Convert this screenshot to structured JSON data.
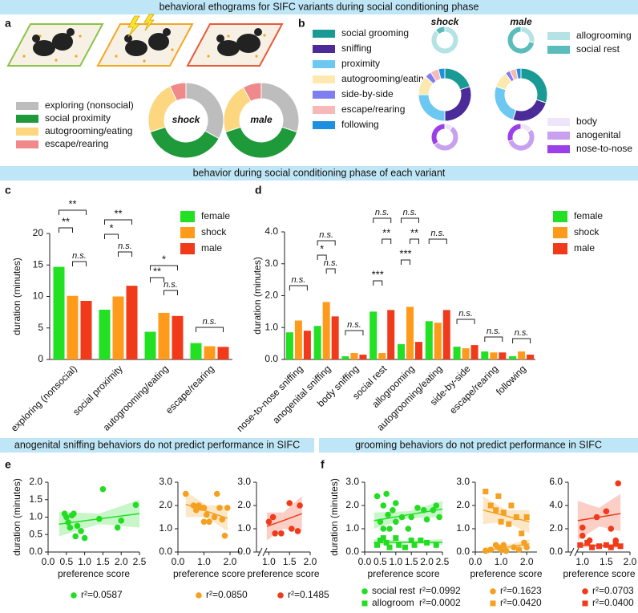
{
  "banners": [
    "behavioral ethograms for SIFC variants during social conditioning phase",
    "behavior during social conditioning phase of each variant",
    "anogenital sniffing behaviors do not predict performance in  SIFC",
    "grooming behaviors do not predict performance in SIFC"
  ],
  "panel_letters": [
    "a",
    "b",
    "c",
    "d",
    "e",
    "f"
  ],
  "chart_data": [
    {
      "type": "pie",
      "categories": [
        "exploring (nonsocial)",
        "social proximity",
        "autogrooming/eating",
        "escape/rearing"
      ],
      "colors": [
        "#bdbdbd",
        "#1e9a3a",
        "#fcd77f",
        "#f08a8a"
      ],
      "series": [
        {
          "name": "shock",
          "values": [
            33,
            37,
            23,
            7
          ]
        },
        {
          "name": "male",
          "values": [
            30,
            40,
            22,
            8
          ]
        }
      ]
    },
    {
      "type": "pie",
      "groups": [
        "shock",
        "male"
      ],
      "rings": [
        {
          "categories": [
            "allogrooming",
            "social rest"
          ],
          "colors": [
            "#b5e3e3",
            "#5bbcbc"
          ],
          "values": [
            [
              88,
              12
            ],
            [
              28,
              72
            ]
          ]
        },
        {
          "categories": [
            "social grooming",
            "sniffing",
            "proximity",
            "autogrooming/eating",
            "side-by-side",
            "escape/rearing",
            "following"
          ],
          "colors": [
            "#1a9a94",
            "#4b2a9a",
            "#6cc8f0",
            "#fde9b0",
            "#7e7ef0",
            "#f7b8b8",
            "#1f8fe0"
          ],
          "values": [
            [
              20,
              30,
              25,
              12,
              4,
              5,
              4
            ],
            [
              30,
              25,
              25,
              10,
              3,
              4,
              3
            ]
          ]
        },
        {
          "categories": [
            "body",
            "anogenital",
            "nose-to-nose"
          ],
          "colors": [
            "#efe5fb",
            "#c9a0f0",
            "#9a40e8"
          ],
          "values": [
            [
              10,
              55,
              35
            ],
            [
              15,
              55,
              30
            ]
          ]
        }
      ]
    },
    {
      "type": "bar",
      "ylabel": "duration (minutes)",
      "categories": [
        "exploring (nonsocial)",
        "social proximity",
        "autogrooming/eating",
        "escape/rearing"
      ],
      "series": [
        {
          "name": "female",
          "color": "#22e022",
          "values": [
            14.7,
            7.9,
            4.4,
            2.6
          ]
        },
        {
          "name": "shock",
          "color": "#ff9a1a",
          "values": [
            10.1,
            10.0,
            7.4,
            2.1
          ]
        },
        {
          "name": "male",
          "color": "#f03a1a",
          "values": [
            9.3,
            11.7,
            6.9,
            2.0
          ]
        }
      ],
      "ylim": [
        0,
        20
      ],
      "yticks": [
        0,
        5,
        10,
        15,
        20
      ],
      "annotations": [
        "**",
        "**",
        "n.s.",
        "**",
        "*",
        "n.s.",
        "*",
        "**",
        "n.s.",
        "n.s."
      ]
    },
    {
      "type": "bar",
      "ylabel": "duration (minutes)",
      "categories": [
        "nose-to-nose sniffing",
        "anogenital sniffing",
        "body sniffing",
        "social rest",
        "allogrooming",
        "autogrooming/eating",
        "side-by-side",
        "escape/rearing",
        "following"
      ],
      "series": [
        {
          "name": "female",
          "color": "#22e022",
          "values": [
            0.85,
            1.05,
            0.1,
            1.5,
            0.48,
            1.2,
            0.4,
            0.25,
            0.1
          ]
        },
        {
          "name": "shock",
          "color": "#ff9a1a",
          "values": [
            1.22,
            1.8,
            0.2,
            0.2,
            1.65,
            1.15,
            0.35,
            0.22,
            0.25
          ]
        },
        {
          "name": "male",
          "color": "#f03a1a",
          "values": [
            0.9,
            1.35,
            0.15,
            1.55,
            0.55,
            1.55,
            0.45,
            0.22,
            0.15
          ]
        }
      ],
      "ylim": [
        0,
        4
      ],
      "yticks": [
        {
          "value": 0,
          "label": "0.0"
        },
        {
          "value": 1,
          "label": "1.0"
        },
        {
          "value": 2,
          "label": "2.0"
        },
        {
          "value": 3,
          "label": "3.0"
        },
        {
          "value": 4,
          "label": "4.0"
        }
      ],
      "annotations": [
        "n.s.",
        "n.s.",
        "*",
        "n.s.",
        "n.s.",
        "n.s.",
        "**",
        "***",
        "n.s.",
        "**",
        "***",
        "n.s.",
        "n.s.",
        "n.s.",
        "n.s."
      ]
    },
    {
      "type": "scatter",
      "ylabel": "duration (minutes)",
      "xlabel": "preference score",
      "xlim": [
        0,
        2.5
      ],
      "ylim": [
        0,
        2
      ],
      "xticks": [
        {
          "value": 0,
          "label": "0.0"
        },
        {
          "value": 0.5,
          "label": "0.5"
        },
        {
          "value": 1,
          "label": "1.0"
        },
        {
          "value": 1.5,
          "label": "1.5"
        },
        {
          "value": 2,
          "label": "2.0"
        },
        {
          "value": 2.5,
          "label": "2.5"
        }
      ],
      "yticks": [
        {
          "value": 0,
          "label": "0.0"
        },
        {
          "value": 0.5,
          "label": "0.5"
        },
        {
          "value": 1,
          "label": "1.0"
        },
        {
          "value": 1.5,
          "label": "1.5"
        },
        {
          "value": 2,
          "label": "2.0"
        }
      ],
      "series": [
        {
          "marker": "circle",
          "color": "#22dd22",
          "r2_label": "r²=0.0587",
          "x": [
            0.45,
            0.5,
            0.55,
            0.6,
            0.65,
            0.7,
            0.75,
            0.8,
            0.9,
            1.0,
            1.4,
            1.5,
            1.9,
            2.0,
            2.4
          ],
          "values": [
            1.1,
            1.0,
            0.85,
            0.7,
            1.05,
            1.1,
            0.45,
            0.75,
            0.6,
            0.4,
            0.95,
            1.8,
            0.7,
            0.9,
            1.35
          ],
          "trend": {
            "x": [
              0.3,
              1.4,
              2.5
            ],
            "y": [
              0.8,
              0.95,
              1.1
            ],
            "lower": [
              0.45,
              0.8,
              0.7
            ],
            "upper": [
              1.15,
              1.1,
              1.5
            ]
          }
        }
      ]
    },
    {
      "type": "scatter",
      "xlabel": "preference score",
      "xlim": [
        0,
        2.4
      ],
      "ylim": [
        0,
        3
      ],
      "xticks": [
        {
          "value": 0,
          "label": "0.0"
        },
        {
          "value": 1,
          "label": "1.0"
        },
        {
          "value": 2,
          "label": "2.0"
        }
      ],
      "yticks": [
        {
          "value": 0,
          "label": "0.0"
        },
        {
          "value": 1,
          "label": "1.0"
        },
        {
          "value": 2,
          "label": "2.0"
        },
        {
          "value": 3,
          "label": "3.0"
        }
      ],
      "series": [
        {
          "marker": "circle",
          "color": "#f5a020",
          "r2_label": "r²=0.0850",
          "x": [
            0.3,
            0.6,
            0.7,
            0.8,
            0.9,
            1.0,
            1.0,
            1.1,
            1.2,
            1.4,
            1.5,
            1.6,
            1.7,
            1.8,
            1.9
          ],
          "values": [
            2.5,
            2.0,
            1.8,
            2.0,
            1.9,
            1.9,
            1.3,
            1.6,
            1.3,
            1.5,
            2.5,
            1.9,
            1.4,
            0.7,
            1.9
          ],
          "trend": {
            "x": [
              0.3,
              1.1,
              1.9
            ],
            "y": [
              2.05,
              1.75,
              1.45
            ],
            "lower": [
              1.5,
              1.5,
              0.9
            ],
            "upper": [
              2.6,
              2.0,
              2.0
            ]
          }
        }
      ]
    },
    {
      "type": "scatter",
      "xlabel": "preference score",
      "x_axis_break": true,
      "xlim": [
        0.7,
        2.0
      ],
      "ylim": [
        0,
        3
      ],
      "xticks": [
        {
          "value": 1,
          "label": "1.0"
        },
        {
          "value": 1.5,
          "label": "1.5"
        },
        {
          "value": 2,
          "label": "2.0"
        }
      ],
      "yticks": [
        {
          "value": 0,
          "label": "0.0"
        },
        {
          "value": 1,
          "label": "1.0"
        },
        {
          "value": 2,
          "label": "2.0"
        },
        {
          "value": 3,
          "label": "3.0"
        }
      ],
      "series": [
        {
          "marker": "circle",
          "color": "#f03a1a",
          "r2_label": "r²=0.1485",
          "x": [
            1.0,
            1.1,
            1.15,
            1.3,
            1.5,
            1.55,
            1.7,
            1.75
          ],
          "values": [
            1.3,
            1.5,
            0.8,
            0.8,
            2.1,
            1.0,
            0.9,
            2.0
          ],
          "trend": {
            "x": [
              0.95,
              1.35,
              1.8
            ],
            "y": [
              1.1,
              1.35,
              1.65
            ],
            "lower": [
              0.5,
              1.0,
              0.9
            ],
            "upper": [
              1.7,
              1.7,
              2.4
            ]
          }
        }
      ]
    },
    {
      "type": "scatter",
      "ylabel": "duration (minutes)",
      "xlabel": "preference score",
      "xlim": [
        0,
        2.5
      ],
      "ylim": [
        0,
        3
      ],
      "xticks": [
        {
          "value": 0,
          "label": "0.0"
        },
        {
          "value": 0.5,
          "label": "0.5"
        },
        {
          "value": 1,
          "label": "1.0"
        },
        {
          "value": 1.5,
          "label": "1.5"
        },
        {
          "value": 2,
          "label": "2.0"
        },
        {
          "value": 2.5,
          "label": "2.5"
        }
      ],
      "yticks": [
        {
          "value": 0,
          "label": "0.0"
        },
        {
          "value": 1,
          "label": "1.0"
        },
        {
          "value": 2,
          "label": "2.0"
        },
        {
          "value": 3,
          "label": "3.0"
        }
      ],
      "series": [
        {
          "name": "social rest",
          "marker": "circle",
          "color": "#22dd22",
          "r2_label": "r²=0.0992",
          "x": [
            0.4,
            0.5,
            0.6,
            0.6,
            0.7,
            0.75,
            0.8,
            0.9,
            1.0,
            1.0,
            1.2,
            1.4,
            1.5,
            1.7,
            1.9,
            2.0,
            2.2,
            2.3,
            2.4
          ],
          "values": [
            2.4,
            1.3,
            2.0,
            1.0,
            2.5,
            1.6,
            1.0,
            1.8,
            2.1,
            1.3,
            1.5,
            1.0,
            1.5,
            1.9,
            1.8,
            1.4,
            1.8,
            2.0,
            1.5
          ],
          "trend": {
            "x": [
              0.3,
              1.4,
              2.5
            ],
            "y": [
              1.35,
              1.6,
              1.85
            ],
            "lower": [
              1.0,
              1.45,
              1.5
            ],
            "upper": [
              1.7,
              1.75,
              2.2
            ]
          }
        },
        {
          "name": "allogroom",
          "marker": "square",
          "color": "#22dd22",
          "r2_label": "r²=0.0002",
          "x": [
            0.4,
            0.5,
            0.6,
            0.7,
            0.8,
            1.0,
            1.1,
            1.3,
            1.5,
            1.6,
            1.8,
            2.0,
            2.3
          ],
          "values": [
            0.3,
            0.5,
            0.6,
            0.4,
            0.2,
            0.6,
            0.3,
            0.2,
            0.5,
            0.3,
            0.5,
            0.4,
            0.3
          ],
          "trend": {
            "x": [
              0.3,
              1.4,
              2.5
            ],
            "y": [
              0.42,
              0.42,
              0.42
            ],
            "lower": [
              0.3,
              0.38,
              0.3
            ],
            "upper": [
              0.55,
              0.48,
              0.55
            ]
          }
        }
      ]
    },
    {
      "type": "scatter",
      "xlabel": "preference score",
      "xlim": [
        0,
        2.4
      ],
      "ylim": [
        0,
        3
      ],
      "xticks": [
        {
          "value": 0,
          "label": "0.0"
        },
        {
          "value": 1,
          "label": "1.0"
        },
        {
          "value": 2,
          "label": "2.0"
        }
      ],
      "yticks": [
        {
          "value": 0,
          "label": "0.0"
        },
        {
          "value": 1,
          "label": "1.0"
        },
        {
          "value": 2,
          "label": "2.0"
        },
        {
          "value": 3,
          "label": "3.0"
        }
      ],
      "series": [
        {
          "marker": "circle",
          "color": "#f5a020",
          "r2_label": "r²=0.1623",
          "x": [
            0.4,
            0.6,
            0.8,
            0.9,
            1.0,
            1.1,
            1.2,
            1.5,
            1.7,
            1.9,
            2.0
          ],
          "values": [
            0.05,
            0.1,
            0.3,
            0.2,
            0.1,
            0.3,
            0.05,
            0.2,
            0.1,
            0.4,
            0.2
          ],
          "trend": {
            "x": [
              0.3,
              1.2,
              2.1
            ],
            "y": [
              0.05,
              0.2,
              0.35
            ],
            "lower": [
              0,
              0.1,
              0.15
            ],
            "upper": [
              0.2,
              0.3,
              0.55
            ]
          }
        },
        {
          "marker": "square",
          "color": "#f5a020",
          "r2_label": "r²=0.0420",
          "x": [
            0.4,
            0.6,
            0.8,
            0.9,
            1.0,
            1.1,
            1.3,
            1.4,
            1.6,
            1.8,
            2.0
          ],
          "values": [
            2.6,
            2.0,
            1.8,
            2.4,
            1.3,
            1.7,
            1.2,
            2.0,
            1.5,
            0.8,
            1.5
          ],
          "trend": {
            "x": [
              0.3,
              1.2,
              2.1
            ],
            "y": [
              1.8,
              1.55,
              1.3
            ],
            "lower": [
              1.2,
              1.3,
              0.8
            ],
            "upper": [
              2.4,
              1.8,
              1.8
            ]
          }
        }
      ]
    },
    {
      "type": "scatter",
      "xlabel": "preference score",
      "x_axis_break": true,
      "xlim": [
        0.7,
        2.0
      ],
      "ylim": [
        0,
        6
      ],
      "xticks": [
        {
          "value": 1,
          "label": "1.0"
        },
        {
          "value": 1.5,
          "label": "1.5"
        },
        {
          "value": 2,
          "label": "2.0"
        }
      ],
      "yticks": [
        {
          "value": 0,
          "label": "0.0"
        },
        {
          "value": 2,
          "label": "2.0"
        },
        {
          "value": 4,
          "label": "4.0"
        },
        {
          "value": 6,
          "label": "6.0"
        }
      ],
      "series": [
        {
          "marker": "circle",
          "color": "#f03a1a",
          "r2_label": "r²=0.0703",
          "x": [
            1.0,
            1.0,
            1.15,
            1.3,
            1.5,
            1.6,
            1.7,
            1.75
          ],
          "values": [
            2.1,
            1.4,
            1.0,
            3.0,
            3.5,
            2.0,
            1.0,
            5.9
          ],
          "trend": {
            "x": [
              0.9,
              1.35,
              1.8
            ],
            "y": [
              2.7,
              3.0,
              3.3
            ],
            "lower": [
              1.0,
              2.2,
              1.8
            ],
            "upper": [
              4.4,
              3.8,
              5.0
            ]
          }
        },
        {
          "marker": "square",
          "color": "#f03a1a",
          "r2_label": "r²=0.0400",
          "x": [
            0.95,
            1.1,
            1.2,
            1.35,
            1.5,
            1.6,
            1.7,
            1.8
          ],
          "values": [
            0.6,
            0.8,
            0.4,
            0.5,
            0.6,
            0.4,
            0.7,
            0.5
          ],
          "trend": {
            "x": [
              0.9,
              1.35,
              1.8
            ],
            "y": [
              0.6,
              0.55,
              0.5
            ],
            "lower": [
              0.4,
              0.45,
              0.3
            ],
            "upper": [
              0.8,
              0.65,
              0.7
            ]
          }
        }
      ]
    }
  ]
}
